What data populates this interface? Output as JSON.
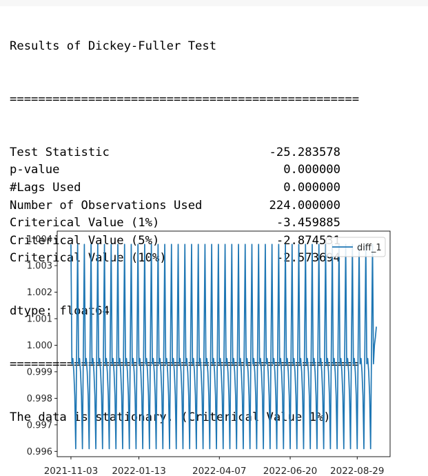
{
  "output": {
    "header": "Results of Dickey-Fuller Test",
    "separator": "=================================================",
    "rows": [
      {
        "label": "Test Statistic",
        "value": "-25.283578"
      },
      {
        "label": "p-value",
        "value": "0.000000"
      },
      {
        "label": "#Lags Used",
        "value": "0.000000"
      },
      {
        "label": "Number of Observations Used",
        "value": "224.000000"
      },
      {
        "label": "Criterical Value (1%)",
        "value": "-3.459885"
      },
      {
        "label": "Criterical Value (5%)",
        "value": "-2.874531"
      },
      {
        "label": "Criterical Value (10%)",
        "value": "-2.573694"
      }
    ],
    "dtype": "dtype: float64",
    "conclusion": "The data is stationary. (Criterical Value 1%)"
  },
  "chart_data": {
    "type": "line",
    "title": "",
    "xlabel": "",
    "ylabel": "",
    "x_start": "2021-11-03",
    "x_end": "2022-09-18",
    "x_ticks": [
      "2021-11-03",
      "2022-01-13",
      "2022-04-07",
      "2022-06-20",
      "2022-08-29"
    ],
    "y_ticks": [
      "0.996",
      "0.997",
      "0.998",
      "0.999",
      "1.000",
      "1.001",
      "1.002",
      "1.003",
      "1.004"
    ],
    "ylim": [
      0.9958,
      1.0043
    ],
    "grid": false,
    "legend": {
      "position": "top-right",
      "entries": [
        "diff_1"
      ]
    },
    "series": [
      {
        "name": "diff_1",
        "color": "#1f77b4",
        "period_days": 7,
        "weekly_pattern": [
          1.0038,
          0.9993,
          0.9995,
          0.999,
          0.9981,
          0.9961,
          1.0
        ],
        "tail": [
          1.0,
          1.0003,
          1.0007
        ]
      }
    ]
  }
}
